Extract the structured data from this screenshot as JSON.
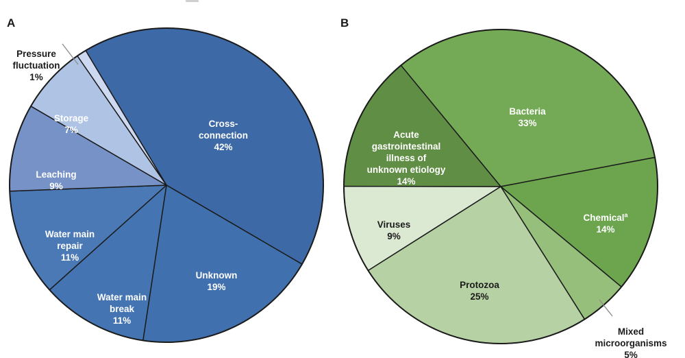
{
  "panels": [
    {
      "label": "A"
    },
    {
      "label": "B"
    }
  ],
  "chart_data": [
    {
      "type": "pie",
      "panel_label": "A",
      "palette": "blues",
      "direction": "clockwise",
      "start_angle_deg": 329,
      "unit": "percent",
      "legend": "none",
      "outline_color": "#1b1b1b",
      "categories": [
        "Cross-connection",
        "Unknown",
        "Water main break",
        "Water main repair",
        "Leaching",
        "Storage",
        "Pressure fluctuation"
      ],
      "values": [
        42,
        19,
        11,
        11,
        9,
        7,
        1
      ],
      "slices": [
        {
          "name": "Cross-\nconnection",
          "pct": "42%",
          "value": 42,
          "color": "#3d69a6",
          "label_color": "#ffffff",
          "label_placement": "inside"
        },
        {
          "name": "Unknown",
          "pct": "19%",
          "value": 19,
          "color": "#4070ae",
          "label_color": "#ffffff",
          "label_placement": "inside"
        },
        {
          "name": "Water main\nbreak",
          "pct": "11%",
          "value": 11,
          "color": "#4475b2",
          "label_color": "#ffffff",
          "label_placement": "inside"
        },
        {
          "name": "Water main\nrepair",
          "pct": "11%",
          "value": 11,
          "color": "#4b79b5",
          "label_color": "#ffffff",
          "label_placement": "inside"
        },
        {
          "name": "Leaching",
          "pct": "9%",
          "value": 9,
          "color": "#7792c6",
          "label_color": "#ffffff",
          "label_placement": "inside"
        },
        {
          "name": "Storage",
          "pct": "7%",
          "value": 7,
          "color": "#afc3e5",
          "label_color": "#ffffff",
          "label_placement": "inside"
        },
        {
          "name": "Pressure\nfluctuation",
          "pct": "1%",
          "value": 1,
          "color": "#cdd9f0",
          "label_color": "#1b1b1b",
          "label_placement": "outside-with-leader-line"
        }
      ]
    },
    {
      "type": "pie",
      "panel_label": "B",
      "palette": "greens",
      "direction": "clockwise",
      "start_angle_deg": 320.5,
      "unit": "percent",
      "legend": "none",
      "outline_color": "#1b1b1b",
      "categories": [
        "Bacteria",
        "Chemical",
        "Mixed microorganisms",
        "Protozoa",
        "Viruses",
        "Acute gastrointestinal illness of unknown etiology"
      ],
      "values": [
        33,
        14,
        5,
        25,
        9,
        14
      ],
      "slices": [
        {
          "name": "Bacteria",
          "pct": "33%",
          "value": 33,
          "color": "#74aa56",
          "label_color": "#ffffff",
          "label_placement": "inside"
        },
        {
          "name": "Chemical",
          "sup": "a",
          "pct": "14%",
          "value": 14,
          "color": "#6ca54e",
          "label_color": "#ffffff",
          "label_placement": "inside"
        },
        {
          "name": "Mixed\nmicroorganisms",
          "pct": "5%",
          "value": 5,
          "color": "#95bf7a",
          "label_color": "#1b1b1b",
          "label_placement": "outside-with-leader-line"
        },
        {
          "name": "Protozoa",
          "pct": "25%",
          "value": 25,
          "color": "#b6d1a4",
          "label_color": "#1b1b1b",
          "label_placement": "inside"
        },
        {
          "name": "Viruses",
          "pct": "9%",
          "value": 9,
          "color": "#dbe8d2",
          "label_color": "#1b1b1b",
          "label_placement": "inside"
        },
        {
          "name": "Acute\ngastrointestinal\nillness of\nunknown etiology",
          "pct": "14%",
          "value": 14,
          "color": "#5f8e44",
          "label_color": "#ffffff",
          "label_placement": "inside"
        }
      ]
    }
  ]
}
